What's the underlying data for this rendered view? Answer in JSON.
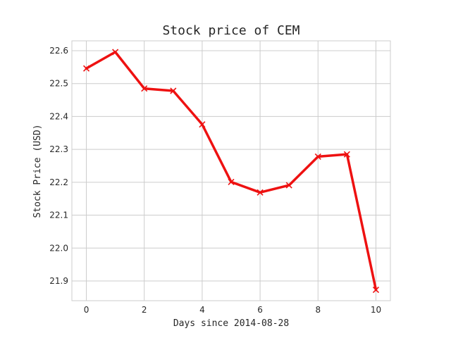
{
  "chart_data": {
    "type": "line",
    "title": "Stock price of CEM",
    "xlabel": "Days since 2014-08-28",
    "ylabel": "Stock Price (USD)",
    "x": [
      0,
      1,
      2,
      3,
      4,
      5,
      6,
      7,
      8,
      9,
      10
    ],
    "series": [
      {
        "values": [
          22.546,
          22.596,
          22.485,
          22.478,
          22.376,
          22.201,
          22.169,
          22.191,
          22.278,
          22.285,
          21.873
        ],
        "color": "#ee1111",
        "marker": "x"
      }
    ],
    "xlim": [
      -0.5,
      10.5
    ],
    "ylim": [
      21.84,
      22.63
    ],
    "xticks": [
      0,
      2,
      4,
      6,
      8,
      10
    ],
    "xtick_labels": [
      "0",
      "2",
      "4",
      "6",
      "8",
      "10"
    ],
    "yticks": [
      21.9,
      22.0,
      22.1,
      22.2,
      22.3,
      22.4,
      22.5,
      22.6
    ],
    "ytick_labels": [
      "21.9",
      "22.0",
      "22.1",
      "22.2",
      "22.3",
      "22.4",
      "22.5",
      "22.6"
    ],
    "grid": true,
    "colors": {
      "grid": "#cccccc",
      "spine": "#cccccc",
      "text": "#262626"
    }
  }
}
